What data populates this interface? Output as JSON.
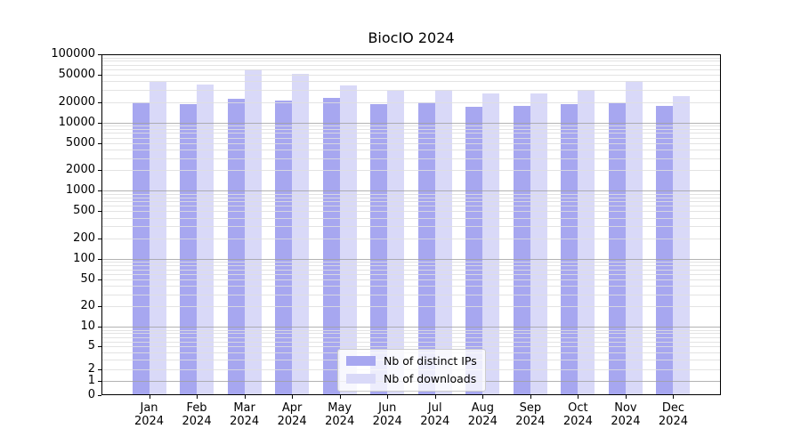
{
  "title": "BiocIO 2024",
  "legend": {
    "items": [
      {
        "label": "Nb of distinct IPs",
        "color": "#a7a7f0"
      },
      {
        "label": "Nb of downloads",
        "color": "#d9d9f8"
      }
    ]
  },
  "chart_data": {
    "type": "bar",
    "title": "BiocIO 2024",
    "categories": [
      "Jan",
      "Feb",
      "Mar",
      "Apr",
      "May",
      "Jun",
      "Jul",
      "Aug",
      "Sep",
      "Oct",
      "Nov",
      "Dec"
    ],
    "year_label": "2024",
    "series": [
      {
        "name": "Nb of distinct IPs",
        "color": "#a7a7f0",
        "values": [
          19700,
          18300,
          22500,
          21000,
          22600,
          18400,
          19700,
          17000,
          17500,
          18800,
          19400,
          17400
        ]
      },
      {
        "name": "Nb of downloads",
        "color": "#d9d9f8",
        "values": [
          39000,
          36000,
          60000,
          52000,
          35000,
          29500,
          30500,
          26500,
          27000,
          30500,
          40500,
          24500
        ]
      }
    ],
    "yscale": "symlog",
    "ylim": [
      0,
      100000
    ],
    "yticks": [
      {
        "value": 0,
        "label": "0",
        "major": false
      },
      {
        "value": 1,
        "label": "1",
        "major": true
      },
      {
        "value": 2,
        "label": "2",
        "major": false
      },
      {
        "value": 5,
        "label": "5",
        "major": false
      },
      {
        "value": 10,
        "label": "10",
        "major": true
      },
      {
        "value": 20,
        "label": "20",
        "major": false
      },
      {
        "value": 50,
        "label": "50",
        "major": false
      },
      {
        "value": 100,
        "label": "100",
        "major": true
      },
      {
        "value": 200,
        "label": "200",
        "major": false
      },
      {
        "value": 500,
        "label": "500",
        "major": false
      },
      {
        "value": 1000,
        "label": "1000",
        "major": true
      },
      {
        "value": 2000,
        "label": "2000",
        "major": false
      },
      {
        "value": 5000,
        "label": "5000",
        "major": false
      },
      {
        "value": 10000,
        "label": "10000",
        "major": true
      },
      {
        "value": 20000,
        "label": "20000",
        "major": false
      },
      {
        "value": 50000,
        "label": "50000",
        "major": false
      },
      {
        "value": 100000,
        "label": "100000",
        "major": false
      }
    ],
    "grid": true,
    "legend_position": "lower center",
    "colors": {
      "major_gridline": "rgba(160,160,160,0.8)",
      "minor_gridline": "rgba(222,222,222,0.85)",
      "spine": "#000000"
    }
  }
}
